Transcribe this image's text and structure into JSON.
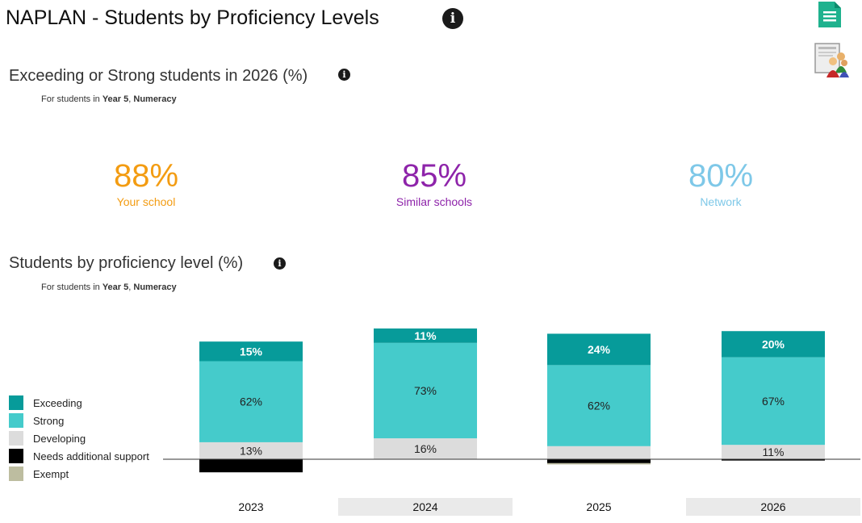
{
  "page": {
    "title": "NAPLAN - Students by Proficiency Levels"
  },
  "summary": {
    "title": "Exceeding or Strong students in 2026 (%)",
    "subtitle_prefix": "For students in ",
    "year_level": "Year 5",
    "separator": ", ",
    "domain": "Numeracy",
    "kpis": [
      {
        "value": "88%",
        "label": "Your school",
        "color": "#f39c12"
      },
      {
        "value": "85%",
        "label": "Similar schools",
        "color": "#8e24aa"
      },
      {
        "value": "80%",
        "label": "Network",
        "color": "#7ec8e8"
      }
    ]
  },
  "proficiency": {
    "title": "Students by proficiency level (%)",
    "subtitle_prefix": "For students in ",
    "year_level": "Year 5",
    "separator": ", ",
    "domain": "Numeracy"
  },
  "icons": {
    "info": "info-icon",
    "document": "document-icon",
    "report": "report-people-icon"
  },
  "chart_data": {
    "type": "bar",
    "stacked": true,
    "baseline_category": "Developing",
    "categories": [
      "2023",
      "2024",
      "2025",
      "2026"
    ],
    "series": [
      {
        "name": "Exceeding",
        "color": "#079b9a",
        "values": [
          15,
          11,
          24,
          20
        ],
        "labels": [
          "15%",
          "11%",
          "24%",
          "20%"
        ],
        "label_color": "#ffffff"
      },
      {
        "name": "Strong",
        "color": "#45cbcb",
        "values": [
          62,
          73,
          62,
          67
        ],
        "labels": [
          "62%",
          "73%",
          "62%",
          "67%"
        ],
        "label_color": "#222222"
      },
      {
        "name": "Developing",
        "color": "#dcdcdc",
        "values": [
          13,
          16,
          10,
          11
        ],
        "labels": [
          "13%",
          "16%",
          "",
          "11%"
        ],
        "label_color": "#222222"
      },
      {
        "name": "Needs additional support",
        "color": "#000000",
        "values": [
          10,
          0,
          3,
          1
        ],
        "labels": [
          "",
          "",
          "",
          ""
        ],
        "label_color": "#ffffff"
      },
      {
        "name": "Exempt",
        "color": "#bdbda0",
        "values": [
          0,
          0,
          1,
          0
        ],
        "labels": [
          "",
          "",
          "",
          ""
        ],
        "label_color": "#222222"
      }
    ],
    "legend_position": "left",
    "grid": false
  }
}
